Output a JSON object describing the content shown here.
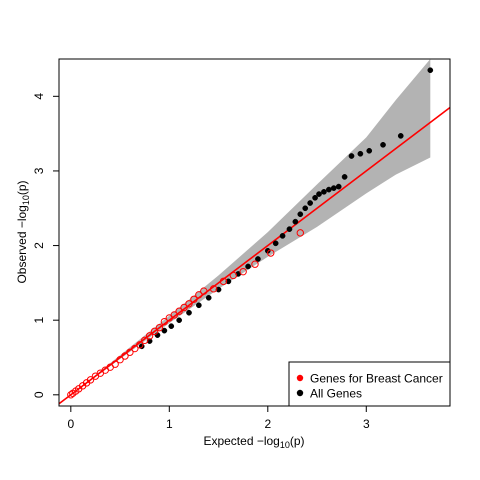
{
  "chart_data": {
    "type": "scatter",
    "title": "",
    "xlabel": "Expected  -log10(p)",
    "ylabel": "Observed  -log10(p)",
    "xlabel_parts": {
      "pre": "Expected  −log",
      "sub": "10",
      "post": "(p)"
    },
    "ylabel_parts": {
      "pre": "Observed  −log",
      "sub": "10",
      "post": "(p)"
    },
    "xlim": [
      -0.12,
      3.85
    ],
    "ylim": [
      -0.15,
      4.5
    ],
    "x_ticks": [
      0,
      1,
      2,
      3
    ],
    "x_tick_labels": [
      "0",
      "1",
      "2",
      "3"
    ],
    "y_ticks": [
      0,
      1,
      2,
      3,
      4
    ],
    "y_tick_labels": [
      "0",
      "1",
      "2",
      "3",
      "4"
    ],
    "grid": false,
    "legend_position": "bottom-right",
    "reference_line": {
      "slope": 1,
      "intercept": 0,
      "color": "#ff0000"
    },
    "confidence_band": {
      "color": "#b3b3b3",
      "upper": [
        [
          0,
          0
        ],
        [
          1.0,
          1.06
        ],
        [
          1.5,
          1.6
        ],
        [
          2.0,
          2.18
        ],
        [
          2.5,
          2.82
        ],
        [
          3.0,
          3.45
        ],
        [
          3.3,
          3.95
        ],
        [
          3.65,
          4.5
        ]
      ],
      "lower": [
        [
          0,
          0
        ],
        [
          1.0,
          0.96
        ],
        [
          1.5,
          1.42
        ],
        [
          2.0,
          1.85
        ],
        [
          2.5,
          2.25
        ],
        [
          3.0,
          2.7
        ],
        [
          3.3,
          2.95
        ],
        [
          3.65,
          3.18
        ]
      ]
    },
    "series": [
      {
        "name": "All Genes",
        "color": "#000000",
        "marker": "filled-circle",
        "points": [
          [
            0.72,
            0.65
          ],
          [
            0.8,
            0.72
          ],
          [
            0.88,
            0.8
          ],
          [
            0.95,
            0.86
          ],
          [
            1.02,
            0.92
          ],
          [
            1.1,
            1.0
          ],
          [
            1.2,
            1.1
          ],
          [
            1.3,
            1.2
          ],
          [
            1.4,
            1.3
          ],
          [
            1.5,
            1.41
          ],
          [
            1.6,
            1.52
          ],
          [
            1.7,
            1.62
          ],
          [
            1.8,
            1.72
          ],
          [
            1.9,
            1.82
          ],
          [
            2.0,
            1.93
          ],
          [
            2.08,
            2.03
          ],
          [
            2.15,
            2.13
          ],
          [
            2.22,
            2.22
          ],
          [
            2.28,
            2.32
          ],
          [
            2.33,
            2.42
          ],
          [
            2.38,
            2.5
          ],
          [
            2.43,
            2.57
          ],
          [
            2.48,
            2.64
          ],
          [
            2.52,
            2.69
          ],
          [
            2.57,
            2.72
          ],
          [
            2.62,
            2.75
          ],
          [
            2.67,
            2.77
          ],
          [
            2.72,
            2.79
          ],
          [
            2.78,
            2.92
          ],
          [
            2.85,
            3.2
          ],
          [
            2.94,
            3.23
          ],
          [
            3.03,
            3.27
          ],
          [
            3.17,
            3.35
          ],
          [
            3.35,
            3.47
          ],
          [
            3.65,
            4.35
          ]
        ]
      },
      {
        "name": "Genes for Breast Cancer",
        "color": "#ff0000",
        "marker": "open-circle",
        "points": [
          [
            0.0,
            0.0
          ],
          [
            0.02,
            0.02
          ],
          [
            0.05,
            0.05
          ],
          [
            0.08,
            0.08
          ],
          [
            0.12,
            0.12
          ],
          [
            0.16,
            0.16
          ],
          [
            0.2,
            0.2
          ],
          [
            0.25,
            0.25
          ],
          [
            0.3,
            0.29
          ],
          [
            0.35,
            0.33
          ],
          [
            0.4,
            0.37
          ],
          [
            0.45,
            0.41
          ],
          [
            0.5,
            0.47
          ],
          [
            0.55,
            0.52
          ],
          [
            0.6,
            0.57
          ],
          [
            0.65,
            0.62
          ],
          [
            0.7,
            0.67
          ],
          [
            0.75,
            0.73
          ],
          [
            0.8,
            0.79
          ],
          [
            0.85,
            0.85
          ],
          [
            0.9,
            0.9
          ],
          [
            0.95,
            0.98
          ],
          [
            1.0,
            1.03
          ],
          [
            1.05,
            1.07
          ],
          [
            1.1,
            1.12
          ],
          [
            1.15,
            1.17
          ],
          [
            1.2,
            1.22
          ],
          [
            1.25,
            1.28
          ],
          [
            1.3,
            1.34
          ],
          [
            1.35,
            1.39
          ],
          [
            1.45,
            1.42
          ],
          [
            1.55,
            1.52
          ],
          [
            1.65,
            1.6
          ],
          [
            1.75,
            1.65
          ],
          [
            1.87,
            1.75
          ],
          [
            2.03,
            1.9
          ],
          [
            2.33,
            2.17
          ]
        ]
      }
    ]
  }
}
